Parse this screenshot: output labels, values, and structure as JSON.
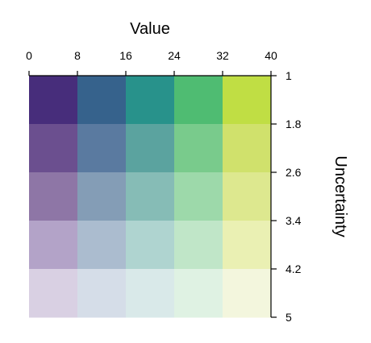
{
  "chart_data": {
    "type": "heatmap",
    "xlabel": "Value",
    "ylabel": "Uncertainty",
    "xlim": [
      0,
      40
    ],
    "xticks": [
      0,
      8,
      16,
      24,
      32,
      40
    ],
    "ylim": [
      1,
      5
    ],
    "yticks": [
      1,
      1.8,
      2.6,
      3.4,
      4.2,
      5
    ],
    "colors": [
      [
        "#472d7b",
        "#36628c",
        "#28928b",
        "#4fbc72",
        "#c0de44"
      ],
      [
        "#6b4f8f",
        "#5a7aa0",
        "#5ba39f",
        "#79cb8c",
        "#d0e16c"
      ],
      [
        "#8e76a6",
        "#849db6",
        "#86bcb6",
        "#9dd9aa",
        "#dde88f"
      ],
      [
        "#b3a3c8",
        "#abbccf",
        "#afd4d0",
        "#c0e6c8",
        "#eaf0b3"
      ],
      [
        "#d9d0e3",
        "#d5dde8",
        "#d9e9e9",
        "#dff2e3",
        "#f3f6dd"
      ]
    ]
  }
}
